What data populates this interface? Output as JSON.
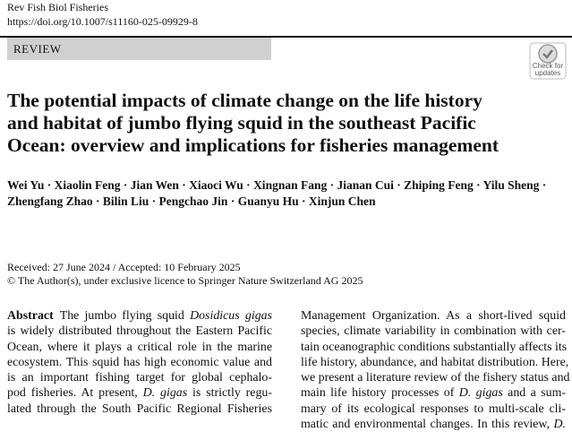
{
  "header": {
    "journal": "Rev Fish Biol Fisheries",
    "doi": "https://doi.org/10.1007/s11160-025-09929-8"
  },
  "article_type": "REVIEW",
  "badge": [
    "Check for",
    "updates"
  ],
  "title": [
    "The potential impacts of climate change on the life history",
    "and habitat of jumbo flying squid in the southeast Pacific",
    "Ocean: overview and implications for fisheries management"
  ],
  "authors": [
    "Wei Yu · Xiaolin Feng · Jian Wen · Xiaoci Wu · Xingnan Fang · Jianan Cui · Zhiping Feng · Yilu Sheng ·",
    "Zhengfang Zhao · Bilin Liu · Pengchao Jin · Guanyu Hu · Xinjun Chen"
  ],
  "dates": "Received: 27 June 2024 / Accepted: 10 February 2025",
  "copyright": "© The Author(s), under exclusive licence to Springer Nature Switzerland AG 2025",
  "abstract": {
    "heading": "Abstract",
    "left": [
      [
        {
          "text": "The jumbo flying squid "
        },
        {
          "text": "Dosidicus gigas",
          "italic": true
        }
      ],
      [
        {
          "text": "is widely distributed throughout the Eastern Pacific"
        }
      ],
      [
        {
          "text": "Ocean, where it plays a critical role in the marine"
        }
      ],
      [
        {
          "text": "ecosystem. This squid has high economic value and"
        }
      ],
      [
        {
          "text": "is an important fishing target for global cephalo-"
        }
      ],
      [
        {
          "text": "pod fisheries. At present, "
        },
        {
          "text": "D. gigas",
          "italic": true
        },
        {
          "text": " is strictly regu-"
        }
      ],
      [
        {
          "text": "lated through the South Pacific Regional Fisheries"
        }
      ]
    ],
    "right": [
      [
        {
          "text": "Management Organization. As a short-lived squid"
        }
      ],
      [
        {
          "text": "species, climate variability in combination with cer-"
        }
      ],
      [
        {
          "text": "tain oceanographic conditions substantially affects its"
        }
      ],
      [
        {
          "text": "life history, abundance, and habitat distribution. Here,"
        }
      ],
      [
        {
          "text": "we present a literature review of the fishery status and"
        }
      ],
      [
        {
          "text": "main life history processes of "
        },
        {
          "text": "D. gigas",
          "italic": true
        },
        {
          "text": " and a sum-"
        }
      ],
      [
        {
          "text": "mary of its ecological responses to multi-scale cli-"
        }
      ],
      [
        {
          "text": "matic and environmental changes. In this review, "
        },
        {
          "text": "D.",
          "italic": true
        }
      ]
    ]
  }
}
